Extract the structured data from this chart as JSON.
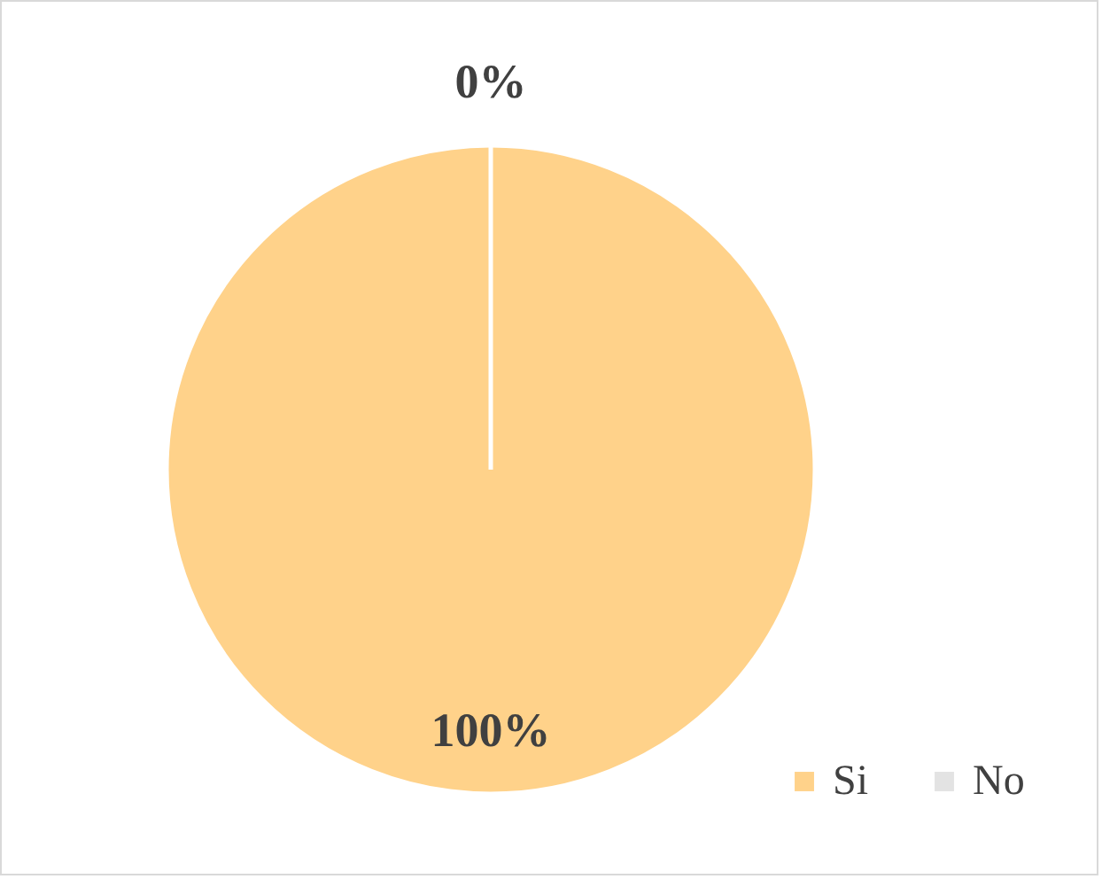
{
  "chart_data": {
    "type": "pie",
    "categories": [
      "Si",
      "No"
    ],
    "values": [
      100,
      0
    ],
    "colors": [
      "#ffd28a",
      "#e3e3e3"
    ],
    "value_labels": [
      "100%",
      "0%"
    ],
    "legend": "bottom right"
  }
}
